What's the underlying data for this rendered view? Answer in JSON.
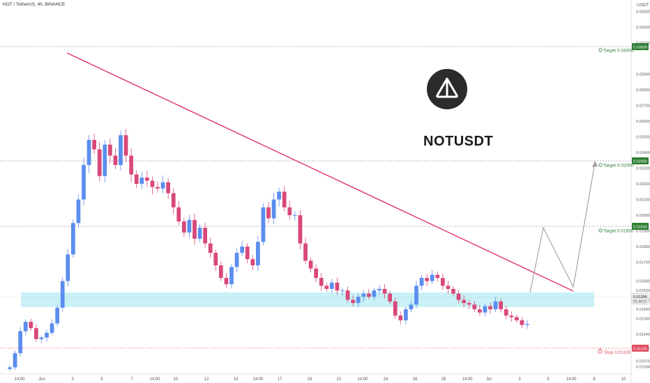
{
  "header": {
    "title": "NOT / TetherUS, 4h, BINANCE",
    "currency": "USDT"
  },
  "watermark": {
    "symbol": "NOTUSDT",
    "logo_icon": "ton-diamond-icon"
  },
  "annotations": {
    "target3": "Target 0.03000",
    "target2": "Target 0.02050",
    "target1": "Target 0.01650",
    "stop": "Stop 0.01100"
  },
  "badges": {
    "t3": "0.03000",
    "t2": "0.02050",
    "t1": "0.01650",
    "current": "0.01306",
    "countdown": "01:44:21",
    "stop": "0.01100"
  },
  "colors": {
    "up": "#5b8def",
    "down": "#d9487a",
    "trendline": "#e0336b",
    "target": "#2e7d32",
    "stop": "#e04b5e",
    "zone": "#b2ebf2",
    "path": "#9e9e9e"
  },
  "chart_data": {
    "type": "candlestick",
    "title": "NOT / TetherUS, 4h, BINANCE",
    "ylabel": "USDT",
    "ylim": [
      0.0101,
      0.0335
    ],
    "y_ticks": [
      "0.03300",
      "0.03200",
      "0.03100",
      "0.02900",
      "0.02800",
      "0.02700",
      "0.02600",
      "0.02500",
      "0.02400",
      "0.02300",
      "0.02200",
      "0.02100",
      "0.02000",
      "0.01900",
      "0.01800",
      "0.01700",
      "0.01580",
      "0.01520",
      "0.01460",
      "0.01400",
      "0.01340",
      "0.01240",
      "0.01150",
      "0.01070",
      "0.01034"
    ],
    "x_ticks": [
      "14:00",
      "Jun",
      "3",
      "5",
      "7",
      "14:00",
      "10",
      "12",
      "14",
      "14:00",
      "17",
      "19",
      "21",
      "14:00",
      "24",
      "26",
      "28",
      "14:00",
      "Jul",
      "3",
      "5",
      "14:00",
      "8",
      "10"
    ],
    "levels": [
      {
        "name": "Target 3",
        "value": 0.03,
        "style": "dotted"
      },
      {
        "name": "Target 2",
        "value": 0.0205,
        "style": "dotted"
      },
      {
        "name": "Target 1",
        "value": 0.0165,
        "style": "dotted"
      },
      {
        "name": "Stop",
        "value": 0.011,
        "style": "dotted"
      }
    ],
    "support_zone": [
      0.0127,
      0.0136
    ],
    "trendline": [
      [
        0.0295
      ],
      [
        0.0135
      ]
    ],
    "projected_path": [
      0.01306,
      0.0165,
      0.0135,
      0.0205
    ],
    "current_price": 0.01306,
    "ohlc_approx_closes": [
      0.0103,
      0.0112,
      0.0126,
      0.0132,
      0.0128,
      0.0121,
      0.0122,
      0.0125,
      0.0131,
      0.0141,
      0.0158,
      0.0175,
      0.0195,
      0.021,
      0.0232,
      0.0248,
      0.0242,
      0.0225,
      0.0245,
      0.0238,
      0.0232,
      0.0251,
      0.0238,
      0.0226,
      0.022,
      0.0224,
      0.0222,
      0.0218,
      0.0217,
      0.0221,
      0.0214,
      0.0205,
      0.0196,
      0.0189,
      0.0197,
      0.0185,
      0.0192,
      0.0182,
      0.0176,
      0.0168,
      0.016,
      0.0156,
      0.0167,
      0.0176,
      0.018,
      0.0172,
      0.0168,
      0.0183,
      0.0205,
      0.0198,
      0.021,
      0.0215,
      0.0205,
      0.02,
      0.02,
      0.0182,
      0.0171,
      0.0166,
      0.016,
      0.0155,
      0.0153,
      0.0157,
      0.0152,
      0.0152,
      0.0146,
      0.0144,
      0.0148,
      0.015,
      0.0148,
      0.0152,
      0.0153,
      0.015,
      0.0145,
      0.0136,
      0.0133,
      0.014,
      0.0143,
      0.0155,
      0.016,
      0.0158,
      0.0162,
      0.016,
      0.0155,
      0.0153,
      0.015,
      0.0146,
      0.0144,
      0.0143,
      0.014,
      0.0138,
      0.0142,
      0.014,
      0.0145,
      0.014,
      0.0136,
      0.0135,
      0.0133,
      0.013,
      0.01306
    ]
  }
}
